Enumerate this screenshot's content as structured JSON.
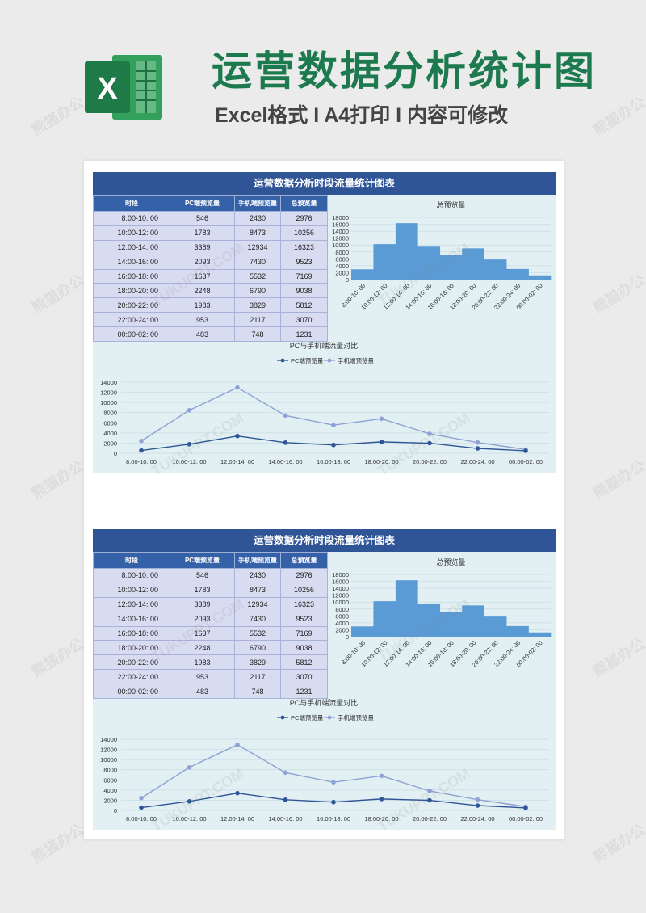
{
  "header": {
    "title": "运营数据分析统计图",
    "subtitle": "Excel格式 I A4打印 I 内容可修改",
    "logo_letter": "X"
  },
  "sheet": {
    "title": "运营数据分析时段流量统计图表",
    "columns": [
      "时段",
      "PC端预览量",
      "手机端预览量",
      "总预览量"
    ],
    "rows": [
      [
        "8:00-10: 00",
        "546",
        "2430",
        "2976"
      ],
      [
        "10:00-12: 00",
        "1783",
        "8473",
        "10256"
      ],
      [
        "12:00-14: 00",
        "3389",
        "12934",
        "16323"
      ],
      [
        "14:00-16: 00",
        "2093",
        "7430",
        "9523"
      ],
      [
        "16:00-18: 00",
        "1637",
        "5532",
        "7169"
      ],
      [
        "18:00-20: 00",
        "2248",
        "6790",
        "9038"
      ],
      [
        "20:00-22: 00",
        "1983",
        "3829",
        "5812"
      ],
      [
        "22:00-24: 00",
        "953",
        "2117",
        "3070"
      ],
      [
        "00:00-02: 00",
        "483",
        "748",
        "1231"
      ]
    ]
  },
  "watermarks": [
    "熊猫办公",
    "TUKUPPT.COM"
  ],
  "colors": {
    "brand_green": "#1d7a4e",
    "header_blue": "#2f5597",
    "bar_blue": "#5b9bd5",
    "pc_line": "#2f5597",
    "mobile_line": "#8fa2d4"
  },
  "chart_data": [
    {
      "type": "bar",
      "title": "总预览量",
      "categories": [
        "8:00-10: 00",
        "10:00-12: 00",
        "12:00-14: 00",
        "14:00-16: 00",
        "16:00-18: 00",
        "18:00-20: 00",
        "20:00-22: 00",
        "22:00-24: 00",
        "00:00-02: 00"
      ],
      "values": [
        2976,
        10256,
        16323,
        9523,
        7169,
        9038,
        5812,
        3070,
        1231
      ],
      "ylim": [
        0,
        18000
      ],
      "yticks": [
        0,
        2000,
        4000,
        6000,
        8000,
        10000,
        12000,
        14000,
        16000,
        18000
      ],
      "grid": true
    },
    {
      "type": "line",
      "title": "PC与手机端流量对比",
      "categories": [
        "8:00-10: 00",
        "10:00-12: 00",
        "12:00-14: 00",
        "14:00-16: 00",
        "16:00-18: 00",
        "18:00-20: 00",
        "20:00-22: 00",
        "22:00-24: 00",
        "00:00-02: 00"
      ],
      "series": [
        {
          "name": "PC端预览量",
          "values": [
            546,
            1783,
            3389,
            2093,
            1637,
            2248,
            1983,
            953,
            483
          ]
        },
        {
          "name": "手机端预览量",
          "values": [
            2430,
            8473,
            12934,
            7430,
            5532,
            6790,
            3829,
            2117,
            748
          ]
        }
      ],
      "ylim": [
        0,
        14000
      ],
      "yticks": [
        0,
        2000,
        4000,
        6000,
        8000,
        10000,
        12000,
        14000
      ],
      "legend": "top",
      "grid": true
    }
  ]
}
